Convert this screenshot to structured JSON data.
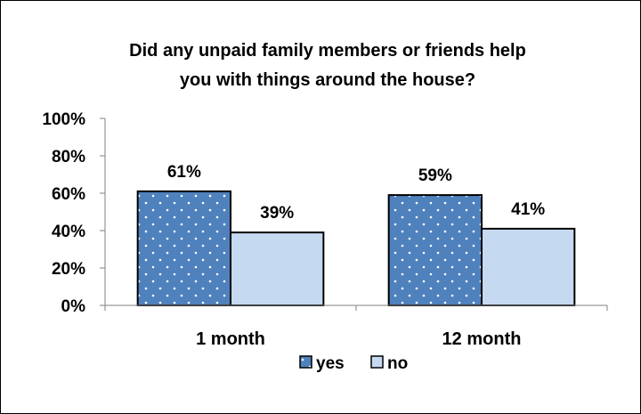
{
  "chart_data": {
    "type": "bar",
    "title_lines": [
      "Did any unpaid family members or friends help",
      "you with things around the house?"
    ],
    "categories": [
      "1 month",
      "12 month"
    ],
    "series": [
      {
        "name": "yes",
        "values": [
          61,
          59
        ],
        "data_labels": [
          "61%",
          "59%"
        ],
        "color": "#4f81bd",
        "pattern": "white-dots"
      },
      {
        "name": "no",
        "values": [
          39,
          41
        ],
        "data_labels": [
          "39%",
          "41%"
        ],
        "color": "#c5d9f1"
      }
    ],
    "ylim": [
      0,
      100
    ],
    "yticks": [
      0,
      20,
      40,
      60,
      80,
      100
    ],
    "ytick_labels": [
      "0%",
      "20%",
      "40%",
      "60%",
      "80%",
      "100%"
    ],
    "grid": false,
    "legend_position": "bottom"
  }
}
